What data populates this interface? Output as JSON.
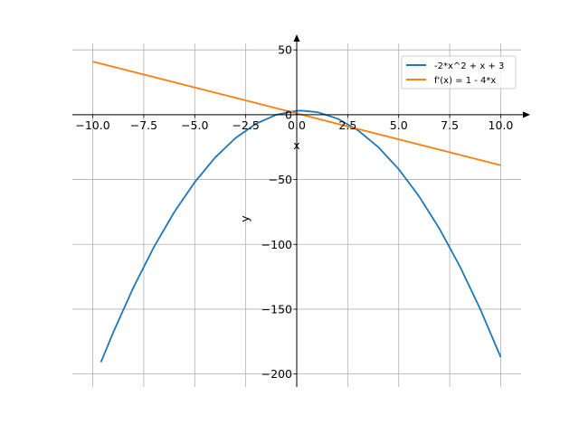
{
  "chart_data": {
    "type": "line",
    "title": "",
    "xlabel": "x",
    "ylabel": "y",
    "xlim": [
      -11,
      11
    ],
    "ylim": [
      -210,
      55
    ],
    "grid": true,
    "legend_position": "top-right",
    "x_ticks": [
      -10.0,
      -7.5,
      -5.0,
      -2.5,
      0.0,
      2.5,
      5.0,
      7.5,
      10.0
    ],
    "x_tick_labels": [
      "−10.0",
      "−7.5",
      "−5.0",
      "−2.5",
      "0.0",
      "2.5",
      "5.0",
      "7.5",
      "10.0"
    ],
    "y_ticks": [
      50,
      0,
      -50,
      -100,
      -150,
      -200
    ],
    "y_tick_labels": [
      "50",
      "0",
      "−50",
      "−100",
      "−150",
      "−200"
    ],
    "series": [
      {
        "name": "-2*x^2 + x + 3",
        "color": "#1f77b4",
        "x": [
          -9.6,
          -9,
          -8,
          -7,
          -6,
          -5,
          -4,
          -3,
          -2,
          -1,
          0,
          0.25,
          1,
          2,
          3,
          4,
          5,
          6,
          7,
          8,
          9,
          10
        ],
        "y": [
          -190.92,
          -168,
          -133,
          -102,
          -75,
          -52,
          -33,
          -18,
          -7,
          0,
          3,
          3.125,
          2,
          -3,
          -12,
          -25,
          -42,
          -63,
          -88,
          -117,
          -150,
          -187
        ]
      },
      {
        "name": "f'(x) = 1 - 4*x",
        "color": "#ff7f0e",
        "x": [
          -10,
          10
        ],
        "y": [
          41,
          -39
        ]
      }
    ]
  }
}
